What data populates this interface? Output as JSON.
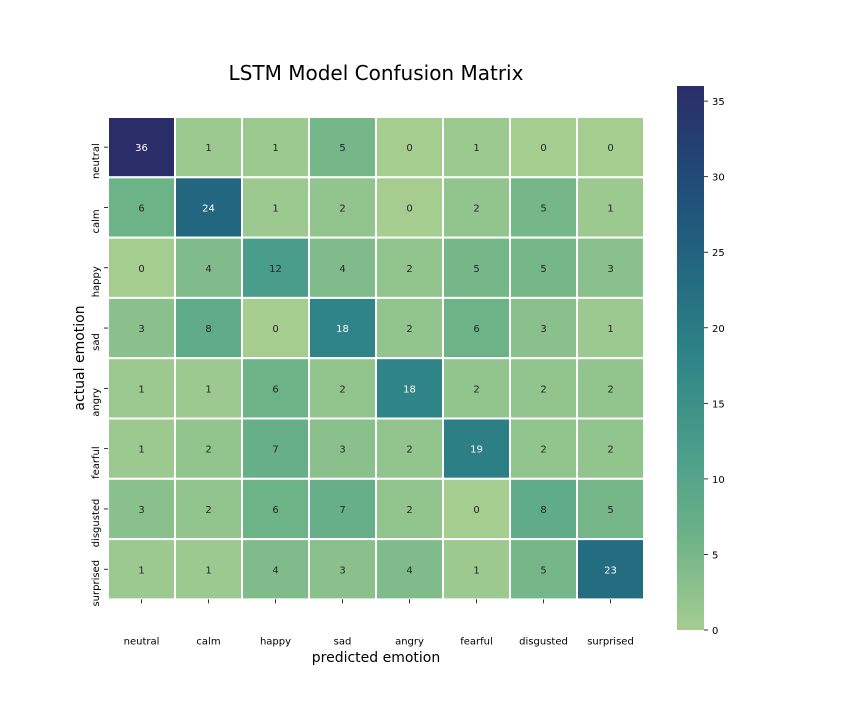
{
  "chart_data": {
    "type": "heatmap",
    "title": "LSTM Model Confusion Matrix",
    "xlabel": "predicted emotion",
    "ylabel": "actual emotion",
    "x_categories": [
      "neutral",
      "calm",
      "happy",
      "sad",
      "angry",
      "fearful",
      "disgusted",
      "surprised"
    ],
    "y_categories": [
      "neutral",
      "calm",
      "happy",
      "sad",
      "angry",
      "fearful",
      "disgusted",
      "surprised"
    ],
    "values": [
      [
        36,
        1,
        1,
        5,
        0,
        1,
        0,
        0
      ],
      [
        6,
        24,
        1,
        2,
        0,
        2,
        5,
        1
      ],
      [
        0,
        4,
        12,
        4,
        2,
        5,
        5,
        3
      ],
      [
        3,
        8,
        0,
        18,
        2,
        6,
        3,
        1
      ],
      [
        1,
        1,
        6,
        2,
        18,
        2,
        2,
        2
      ],
      [
        1,
        2,
        7,
        3,
        2,
        19,
        2,
        2
      ],
      [
        3,
        2,
        6,
        7,
        2,
        0,
        8,
        5
      ],
      [
        1,
        1,
        4,
        3,
        4,
        1,
        5,
        23
      ]
    ],
    "colorscale": "crest",
    "colorscale_stops": [
      "#a5cd90",
      "#6db388",
      "#4a9d89",
      "#2e8486",
      "#22677f",
      "#1f4a77",
      "#2b2d68"
    ],
    "vmin": 0,
    "vmax": 36,
    "colorbar_ticks": [
      0,
      5,
      10,
      15,
      20,
      25,
      30,
      35
    ],
    "annotate": true,
    "grid": false
  }
}
